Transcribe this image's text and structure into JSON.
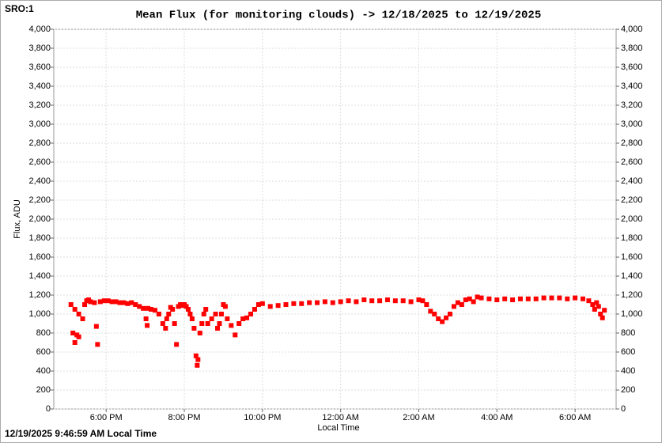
{
  "chart_data": {
    "type": "scatter",
    "title": "Mean Flux (for monitoring clouds) -> 12/18/2025 to 12/19/2025",
    "top_left_label": "SRO:1",
    "footer": "12/19/2025 9:46:59 AM Local Time",
    "y_label": "Flux, ADU",
    "x_label": "Local Time",
    "color": "#ff0000",
    "grid": true,
    "xlim": [
      16.66,
      31.05
    ],
    "ylim": [
      0,
      4000
    ],
    "xticks": [
      {
        "value": 18,
        "label": "6:00 PM"
      },
      {
        "value": 20,
        "label": "8:00 PM"
      },
      {
        "value": 22,
        "label": "10:00 PM"
      },
      {
        "value": 24,
        "label": "12:00 AM"
      },
      {
        "value": 26,
        "label": "2:00 AM"
      },
      {
        "value": 28,
        "label": "4:00 AM"
      },
      {
        "value": 30,
        "label": "6:00 AM"
      }
    ],
    "yticks": [
      0,
      200,
      400,
      600,
      800,
      {
        "value": 1000,
        "label": "1,000"
      },
      {
        "value": 1200,
        "label": "1,200"
      },
      {
        "value": 1400,
        "label": "1,400"
      },
      {
        "value": 1600,
        "label": "1,600"
      },
      {
        "value": 1800,
        "label": "1,800"
      },
      {
        "value": 2000,
        "label": "2,000"
      },
      {
        "value": 2200,
        "label": "2,200"
      },
      {
        "value": 2400,
        "label": "2,400"
      },
      {
        "value": 2600,
        "label": "2,600"
      },
      {
        "value": 2800,
        "label": "2,800"
      },
      {
        "value": 3000,
        "label": "3,000"
      },
      {
        "value": 3200,
        "label": "3,200"
      },
      {
        "value": 3400,
        "label": "3,400"
      },
      {
        "value": 3600,
        "label": "3,600"
      },
      {
        "value": 3800,
        "label": "3,800"
      },
      {
        "value": 4000,
        "label": "4,000"
      }
    ],
    "x": [
      17.1,
      17.15,
      17.2,
      17.25,
      17.3,
      17.2,
      17.3,
      17.4,
      17.45,
      17.5,
      17.55,
      17.6,
      17.7,
      17.75,
      17.78,
      17.85,
      17.95,
      18.05,
      18.15,
      18.25,
      18.35,
      18.45,
      18.55,
      18.65,
      18.75,
      18.85,
      18.95,
      19.02,
      19.05,
      19.07,
      19.15,
      19.25,
      19.35,
      19.45,
      19.52,
      19.55,
      19.6,
      19.65,
      19.7,
      19.75,
      19.8,
      19.85,
      19.9,
      19.95,
      20.0,
      20.05,
      20.1,
      20.15,
      20.2,
      20.25,
      20.3,
      20.33,
      20.35,
      20.4,
      20.45,
      20.5,
      20.55,
      20.6,
      20.7,
      20.8,
      20.85,
      20.9,
      20.95,
      21.0,
      21.05,
      21.1,
      21.2,
      21.3,
      21.4,
      21.5,
      21.6,
      21.7,
      21.8,
      21.9,
      22.0,
      22.2,
      22.4,
      22.6,
      22.8,
      23.0,
      23.2,
      23.4,
      23.6,
      23.8,
      24.0,
      24.2,
      24.4,
      24.6,
      24.8,
      25.0,
      25.2,
      25.4,
      25.6,
      25.8,
      26.0,
      26.1,
      26.2,
      26.3,
      26.4,
      26.5,
      26.6,
      26.7,
      26.8,
      26.9,
      27.0,
      27.1,
      27.2,
      27.3,
      27.4,
      27.5,
      27.6,
      27.8,
      28.0,
      28.2,
      28.4,
      28.6,
      28.8,
      29.0,
      29.2,
      29.4,
      29.6,
      29.8,
      30.0,
      30.2,
      30.35,
      30.45,
      30.5,
      30.55,
      30.6,
      30.65,
      30.7,
      30.75
    ],
    "values": [
      1100,
      800,
      700,
      780,
      760,
      1050,
      1000,
      950,
      1100,
      1140,
      1150,
      1130,
      1120,
      870,
      680,
      1130,
      1140,
      1140,
      1130,
      1130,
      1120,
      1120,
      1110,
      1120,
      1100,
      1080,
      1060,
      950,
      880,
      1060,
      1050,
      1040,
      1000,
      900,
      850,
      950,
      1000,
      1070,
      1050,
      900,
      680,
      1080,
      1100,
      1090,
      1100,
      1080,
      1050,
      1000,
      950,
      850,
      560,
      460,
      520,
      800,
      900,
      1000,
      1050,
      900,
      950,
      1000,
      850,
      900,
      1000,
      1100,
      1080,
      950,
      880,
      780,
      900,
      950,
      960,
      1000,
      1050,
      1100,
      1110,
      1080,
      1090,
      1100,
      1110,
      1110,
      1120,
      1120,
      1130,
      1120,
      1130,
      1140,
      1130,
      1150,
      1140,
      1140,
      1150,
      1140,
      1140,
      1130,
      1150,
      1140,
      1100,
      1030,
      1000,
      950,
      920,
      960,
      1000,
      1080,
      1120,
      1100,
      1150,
      1160,
      1130,
      1180,
      1170,
      1160,
      1150,
      1160,
      1150,
      1160,
      1160,
      1160,
      1170,
      1170,
      1170,
      1160,
      1170,
      1160,
      1140,
      1100,
      1050,
      1120,
      1080,
      1000,
      960,
      1040
    ]
  }
}
